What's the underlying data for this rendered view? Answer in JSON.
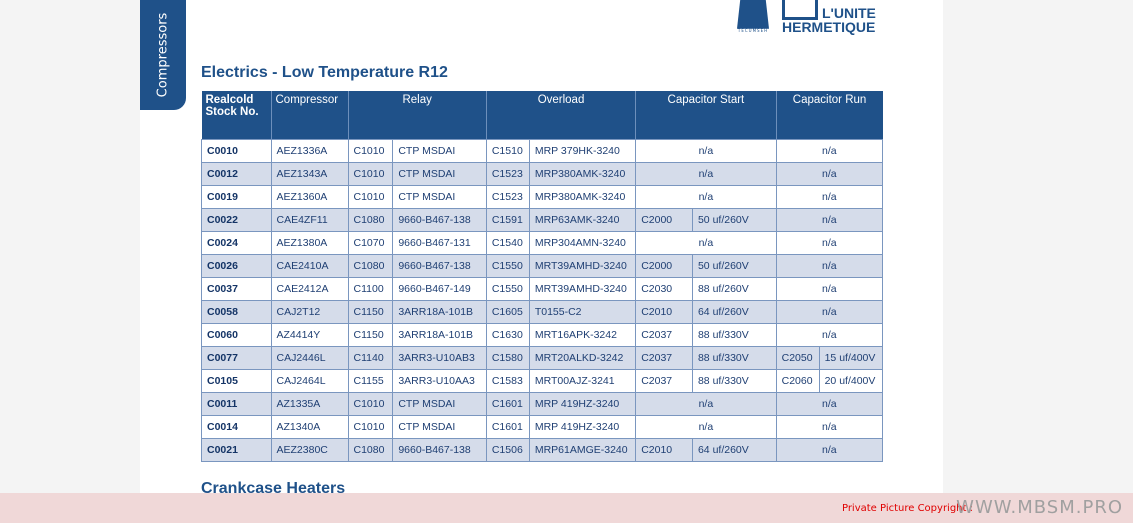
{
  "tab_label": "Compressors",
  "logos": {
    "tecumseh": "TECUMSEH EUROPE",
    "lunite_line1": "L'UNITE",
    "lunite_line2": "HERMETIQUE"
  },
  "section_title": "Electrics - Low Temperature R12",
  "next_section_title": "Crankcase Heaters",
  "table": {
    "headers": [
      "Realcold Stock No.",
      "Compressor",
      "Relay",
      "Overload",
      "Capacitor Start",
      "Capacitor Run"
    ],
    "rows": [
      {
        "stock": "C0010",
        "compressor": "AEZ1336A",
        "relay_code": "C1010",
        "relay": "CTP MSDAI",
        "overload_code": "C1510",
        "overload": "MRP 379HK-3240",
        "cap_start": "n/a",
        "cap_run": "n/a"
      },
      {
        "stock": "C0012",
        "compressor": "AEZ1343A",
        "relay_code": "C1010",
        "relay": "CTP MSDAI",
        "overload_code": "C1523",
        "overload": "MRP380AMK-3240",
        "cap_start": "n/a",
        "cap_run": "n/a"
      },
      {
        "stock": "C0019",
        "compressor": "AEZ1360A",
        "relay_code": "C1010",
        "relay": "CTP MSDAI",
        "overload_code": "C1523",
        "overload": "MRP380AMK-3240",
        "cap_start": "n/a",
        "cap_run": "n/a"
      },
      {
        "stock": "C0022",
        "compressor": "CAE4ZF11",
        "relay_code": "C1080",
        "relay": "9660-B467-138",
        "overload_code": "C1591",
        "overload": "MRP63AMK-3240",
        "cap_start": {
          "code": "C2000",
          "value": "50 uf/260V"
        },
        "cap_run": "n/a"
      },
      {
        "stock": "C0024",
        "compressor": "AEZ1380A",
        "relay_code": "C1070",
        "relay": "9660-B467-131",
        "overload_code": "C1540",
        "overload": "MRP304AMN-3240",
        "cap_start": "n/a",
        "cap_run": "n/a"
      },
      {
        "stock": "C0026",
        "compressor": "CAE2410A",
        "relay_code": "C1080",
        "relay": "9660-B467-138",
        "overload_code": "C1550",
        "overload": "MRT39AMHD-3240",
        "cap_start": {
          "code": "C2000",
          "value": "50 uf/260V"
        },
        "cap_run": "n/a"
      },
      {
        "stock": "C0037",
        "compressor": "CAE2412A",
        "relay_code": "C1100",
        "relay": "9660-B467-149",
        "overload_code": "C1550",
        "overload": "MRT39AMHD-3240",
        "cap_start": {
          "code": "C2030",
          "value": "88 uf/260V"
        },
        "cap_run": "n/a"
      },
      {
        "stock": "C0058",
        "compressor": "CAJ2T12",
        "relay_code": "C1150",
        "relay": "3ARR18A-101B",
        "overload_code": "C1605",
        "overload": "T0155-C2",
        "cap_start": {
          "code": "C2010",
          "value": "64 uf/260V"
        },
        "cap_run": "n/a"
      },
      {
        "stock": "C0060",
        "compressor": "AZ4414Y",
        "relay_code": "C1150",
        "relay": "3ARR18A-101B",
        "overload_code": "C1630",
        "overload": "MRT16APK-3242",
        "cap_start": {
          "code": "C2037",
          "value": "88 uf/330V"
        },
        "cap_run": "n/a"
      },
      {
        "stock": "C0077",
        "compressor": "CAJ2446L",
        "relay_code": "C1140",
        "relay": "3ARR3-U10AB3",
        "overload_code": "C1580",
        "overload": "MRT20ALKD-3242",
        "cap_start": {
          "code": "C2037",
          "value": "88 uf/330V"
        },
        "cap_run": {
          "code": "C2050",
          "value": "15 uf/400V"
        }
      },
      {
        "stock": "C0105",
        "compressor": "CAJ2464L",
        "relay_code": "C1155",
        "relay": "3ARR3-U10AA3",
        "overload_code": "C1583",
        "overload": "MRT00AJZ-3241",
        "cap_start": {
          "code": "C2037",
          "value": "88 uf/330V"
        },
        "cap_run": {
          "code": "C2060",
          "value": "20 uf/400V"
        }
      },
      {
        "stock": "C0011",
        "compressor": "AZ1335A",
        "relay_code": "C1010",
        "relay": "CTP MSDAI",
        "overload_code": "C1601",
        "overload": "MRP 419HZ-3240",
        "cap_start": "n/a",
        "cap_run": "n/a"
      },
      {
        "stock": "C0014",
        "compressor": "AZ1340A",
        "relay_code": "C1010",
        "relay": "CTP MSDAI",
        "overload_code": "C1601",
        "overload": "MRP 419HZ-3240",
        "cap_start": "n/a",
        "cap_run": "n/a"
      },
      {
        "stock": "C0021",
        "compressor": "AEZ2380C",
        "relay_code": "C1080",
        "relay": "9660-B467-138",
        "overload_code": "C1506",
        "overload": "MRP61AMGE-3240",
        "cap_start": {
          "code": "C2010",
          "value": "64 uf/260V"
        },
        "cap_run": "n/a"
      }
    ]
  },
  "footer": {
    "copyright": "Private Picture Copyright :",
    "site": "WWW.MBSM.PRO"
  },
  "colors": {
    "brand_blue": "#1f5189",
    "row_alt": "#d5dcea",
    "copyright_red": "#e00000"
  }
}
